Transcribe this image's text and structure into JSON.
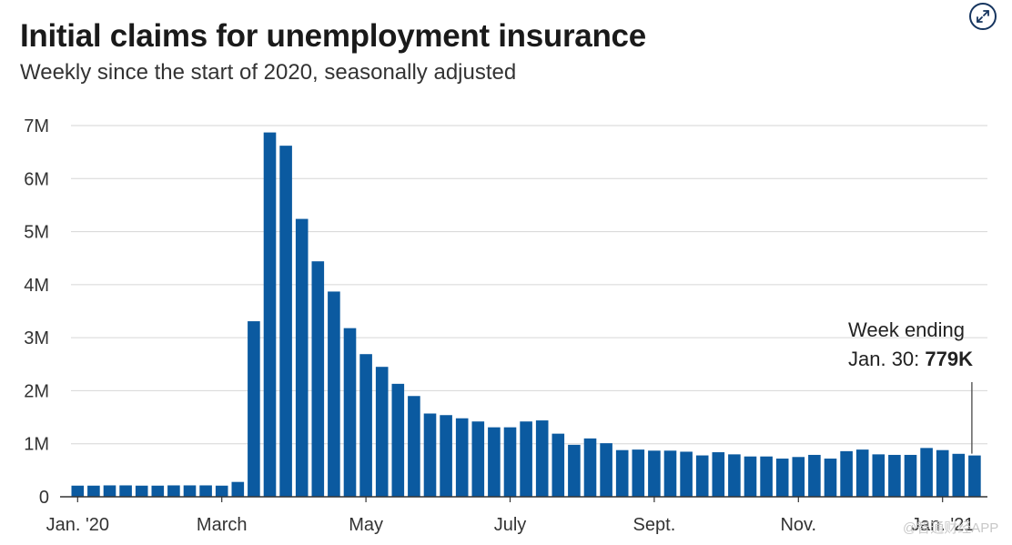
{
  "header": {
    "title": "Initial claims for unemployment insurance",
    "subtitle": "Weekly since the start of 2020, seasonally adjusted"
  },
  "controls": {
    "expand_icon": "expand-arrows-icon"
  },
  "watermark": "@智通财经APP",
  "colors": {
    "bar": "#0b5aa0",
    "grid": "#d6d6d6",
    "axis": "#333333",
    "title": "#1a1a1a"
  },
  "chart_data": {
    "type": "bar",
    "title": "Initial claims for unemployment insurance",
    "subtitle": "Weekly since the start of 2020, seasonally adjusted",
    "xlabel": "",
    "ylabel": "",
    "ylim": [
      0,
      7000000
    ],
    "grid": true,
    "y_ticks": [
      {
        "value": 0,
        "label": "0"
      },
      {
        "value": 1000000,
        "label": "1M"
      },
      {
        "value": 2000000,
        "label": "2M"
      },
      {
        "value": 3000000,
        "label": "3M"
      },
      {
        "value": 4000000,
        "label": "4M"
      },
      {
        "value": 5000000,
        "label": "5M"
      },
      {
        "value": 6000000,
        "label": "6M"
      },
      {
        "value": 7000000,
        "label": "7M"
      }
    ],
    "x_ticks": [
      {
        "week": 0,
        "label": "Jan. '20"
      },
      {
        "week": 9,
        "label": "March"
      },
      {
        "week": 18,
        "label": "May"
      },
      {
        "week": 27,
        "label": "July"
      },
      {
        "week": 36,
        "label": "Sept."
      },
      {
        "week": 45,
        "label": "Nov."
      },
      {
        "week": 54,
        "label": "Jan. '21"
      }
    ],
    "series": [
      {
        "values": [
          210000,
          210000,
          215000,
          215000,
          210000,
          210000,
          215000,
          215000,
          215000,
          210000,
          280000,
          3310000,
          6870000,
          6620000,
          5240000,
          4440000,
          3870000,
          3180000,
          2690000,
          2450000,
          2130000,
          1900000,
          1570000,
          1540000,
          1480000,
          1420000,
          1310000,
          1310000,
          1420000,
          1440000,
          1190000,
          980000,
          1100000,
          1010000,
          880000,
          890000,
          870000,
          870000,
          850000,
          780000,
          840000,
          800000,
          760000,
          760000,
          720000,
          750000,
          790000,
          720000,
          860000,
          890000,
          800000,
          790000,
          790000,
          920000,
          880000,
          810000,
          779000
        ]
      }
    ],
    "annotation": {
      "line1": "Week ending",
      "line2_prefix": "Jan. 30: ",
      "line2_value": "779K",
      "week": 56
    }
  }
}
